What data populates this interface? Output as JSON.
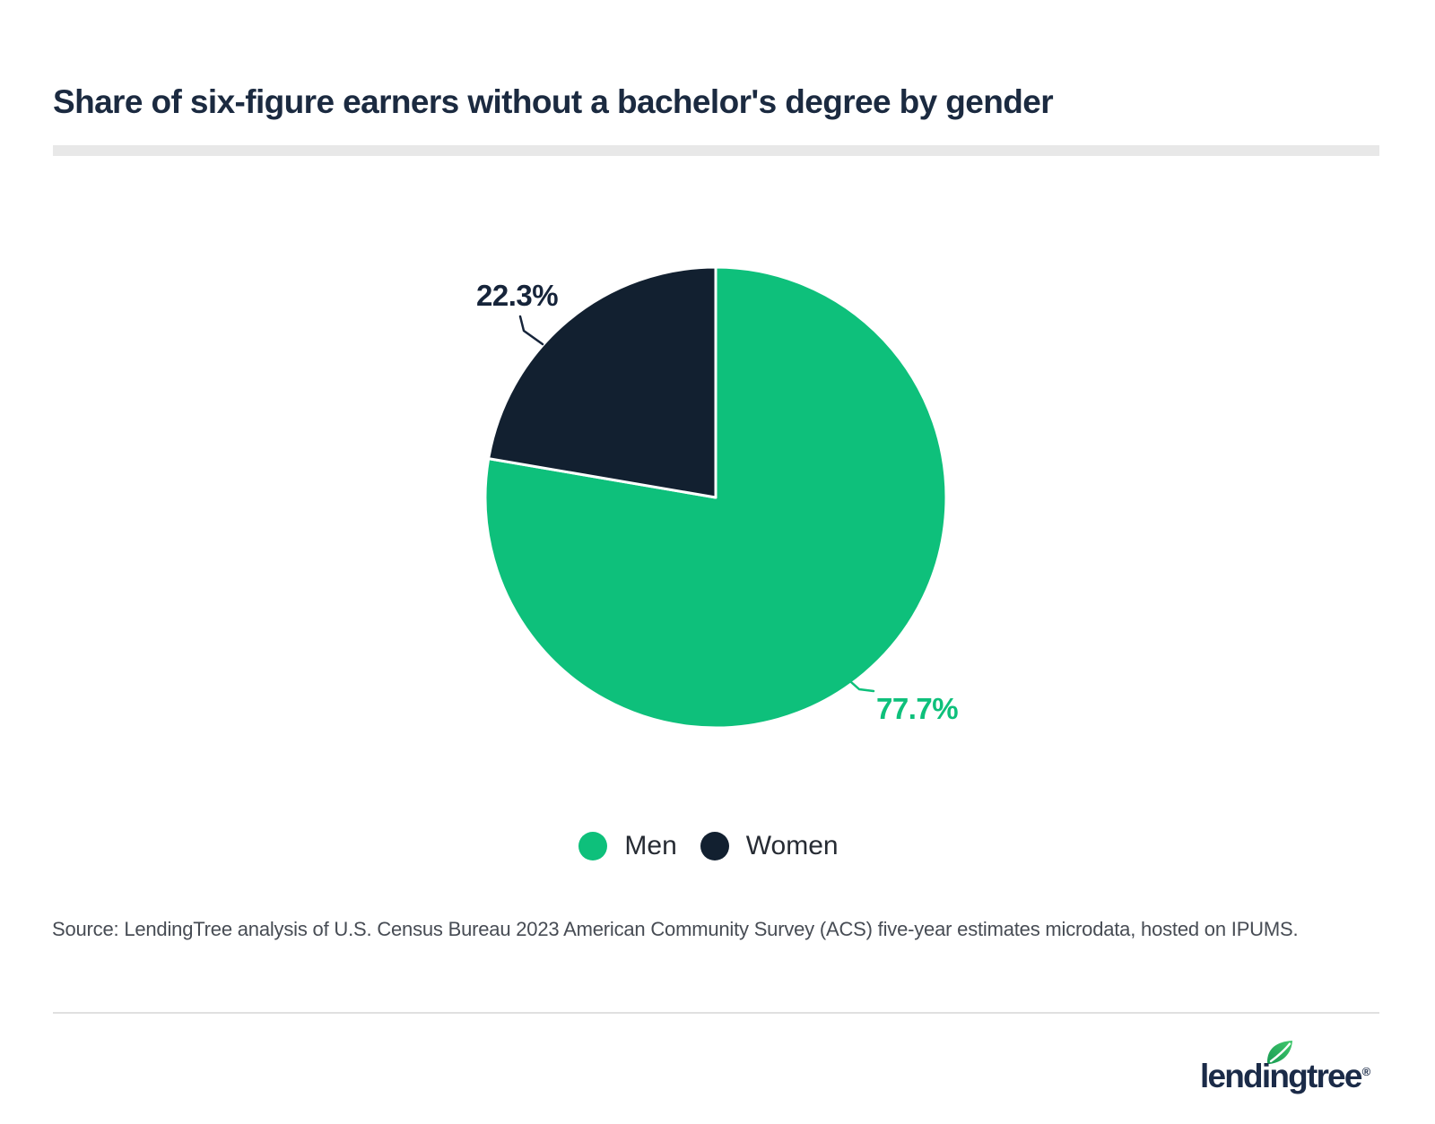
{
  "header": {
    "title": "Share of six-figure earners without a bachelor's degree by gender"
  },
  "chart_data": {
    "type": "pie",
    "title": "Share of six-figure earners without a bachelor's degree by gender",
    "slices": [
      {
        "label": "Men",
        "value": 77.7,
        "display": "77.7%",
        "color": "#0ec07b"
      },
      {
        "label": "Women",
        "value": 22.3,
        "display": "22.3%",
        "color": "#122030"
      }
    ],
    "start_angle_deg": 0,
    "direction": "clockwise",
    "legend_position": "bottom",
    "slice_border_color": "#ffffff"
  },
  "callouts": {
    "women": "22.3%",
    "men": "77.7%"
  },
  "legend": {
    "items": [
      {
        "label": "Men",
        "color": "#0ec07b"
      },
      {
        "label": "Women",
        "color": "#122030"
      }
    ]
  },
  "source": {
    "text": "Source: LendingTree analysis of U.S. Census Bureau 2023 American Community Survey (ACS) five-year estimates microdata, hosted on IPUMS."
  },
  "footer": {
    "brand": "lendingtree",
    "registered": "®"
  },
  "colors": {
    "accent_green": "#0ec07b",
    "dark_navy": "#122030",
    "title_text": "#1b2a40",
    "source_text": "#474c54",
    "divider_thick": "#e8e8e8",
    "divider_thin": "#e0e0e0",
    "background": "#ffffff"
  }
}
